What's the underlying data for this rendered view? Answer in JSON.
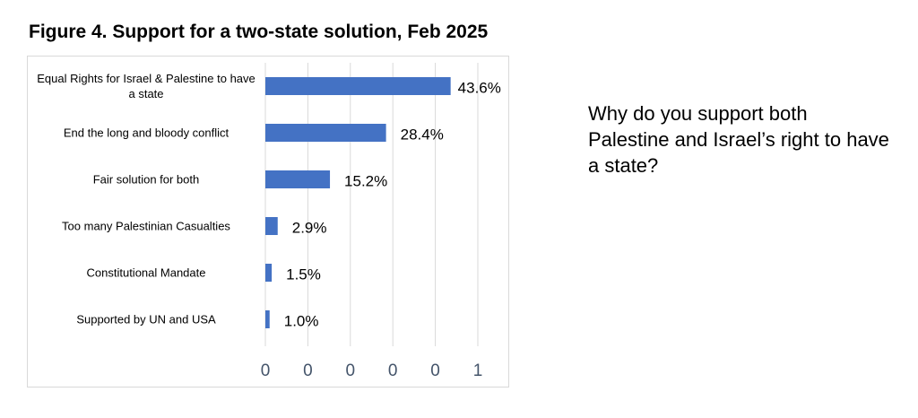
{
  "chart_data": {
    "type": "barh",
    "title": "Figure 4. Support for a two-state solution, Feb 2025",
    "categories": [
      "Equal Rights for Israel & Palestine to have a state",
      "End the long and bloody conflict",
      "Fair solution for both",
      "Too many Palestinian Casualties",
      "Constitutional Mandate",
      "Supported by UN and USA"
    ],
    "values": [
      0.436,
      0.284,
      0.152,
      0.029,
      0.015,
      0.01
    ],
    "value_labels": [
      "43.6%",
      "28.4%",
      "15.2%",
      "2.9%",
      "1.5%",
      "1.0%"
    ],
    "color": "#4472c4",
    "xlim": [
      0,
      0.5
    ],
    "xticks": [
      0,
      {
        "value": 0.1,
        "label": "0"
      },
      {
        "value": 0.2,
        "label": "0"
      },
      {
        "value": 0.3,
        "label": "0"
      },
      {
        "value": 0.4,
        "label": "0"
      },
      {
        "value": 0.5,
        "label": "1"
      }
    ],
    "grid": true,
    "annotation": "Why do you support both Palestine and Israel’s right to have a state?"
  }
}
